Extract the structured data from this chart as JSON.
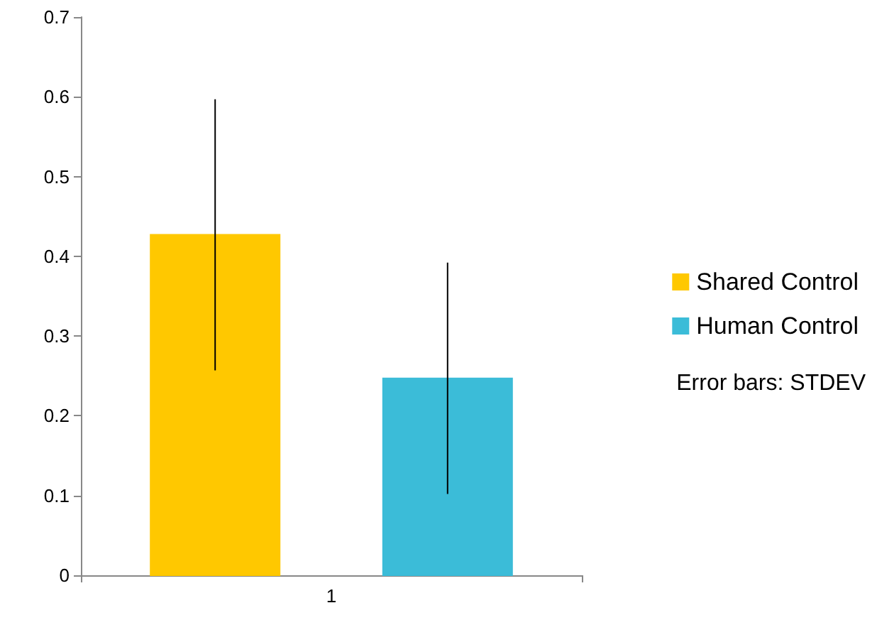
{
  "chart_data": {
    "type": "bar",
    "categories": [
      "1"
    ],
    "series": [
      {
        "name": "Shared Control",
        "color": "#ffc800",
        "values": [
          0.427
        ],
        "errors": [
          0.17
        ]
      },
      {
        "name": "Human Control",
        "color": "#3bbcd8",
        "values": [
          0.247
        ],
        "errors": [
          0.145
        ]
      }
    ],
    "ylim": [
      0,
      0.7
    ],
    "yticks": [
      0,
      0.1,
      0.2,
      0.3,
      0.4,
      0.5,
      0.6,
      0.7
    ],
    "grid": false,
    "legend": "right",
    "annotations": [
      "Error bars: STDEV"
    ]
  }
}
